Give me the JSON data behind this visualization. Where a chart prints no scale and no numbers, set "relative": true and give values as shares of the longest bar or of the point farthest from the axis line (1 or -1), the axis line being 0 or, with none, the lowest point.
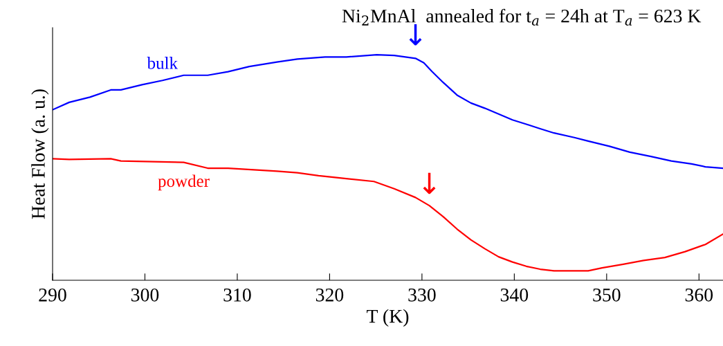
{
  "chart_data": {
    "type": "line",
    "relative": true,
    "title": "Ni$_{2}$MnAl  annealed for t$_{a}$ = 24h at T$_{a}$ = 623 K",
    "xlabel": "T (K)",
    "ylabel": "Heat Flow (a. u.)",
    "xlim": [
      290,
      362.6
    ],
    "xticks": [
      290,
      300,
      310,
      320,
      330,
      340,
      350,
      360
    ],
    "grid": false,
    "legend": false,
    "series": [
      {
        "name": "bulk",
        "color": "#0000ff",
        "x": [
          290,
          291.8,
          294.05,
          296.3,
          297.4,
          299.7,
          301.9,
          304.2,
          306.8,
          309.0,
          311.3,
          314.3,
          316.5,
          319.5,
          321.8,
          325.1,
          327.0,
          329.3,
          330.2,
          331.1,
          332.3,
          333.8,
          335.3,
          336.8,
          338.3,
          339.8,
          341.3,
          342.8,
          344.3,
          346.5,
          348.0,
          350.3,
          352.5,
          354.8,
          357.0,
          359.2,
          360.7,
          362.6
        ],
        "values": [
          0.756,
          0.789,
          0.812,
          0.844,
          0.844,
          0.867,
          0.886,
          0.909,
          0.909,
          0.925,
          0.948,
          0.968,
          0.981,
          0.99,
          0.99,
          1.0,
          0.997,
          0.984,
          0.964,
          0.925,
          0.877,
          0.821,
          0.786,
          0.763,
          0.737,
          0.711,
          0.692,
          0.672,
          0.653,
          0.633,
          0.617,
          0.594,
          0.568,
          0.549,
          0.529,
          0.516,
          0.503,
          0.497
        ]
      },
      {
        "name": "powder",
        "color": "#ff0000",
        "x": [
          290,
          291.8,
          296.3,
          297.4,
          304.2,
          306.8,
          309.0,
          314.3,
          316.5,
          318.8,
          321.8,
          324.8,
          327.0,
          329.3,
          330.8,
          332.3,
          333.8,
          335.3,
          336.8,
          338.3,
          339.8,
          341.3,
          342.8,
          344.3,
          346.5,
          348.0,
          349.5,
          351.8,
          354.0,
          356.3,
          358.5,
          360.7,
          362.6
        ],
        "values": [
          0.539,
          0.536,
          0.539,
          0.529,
          0.523,
          0.497,
          0.497,
          0.484,
          0.477,
          0.464,
          0.451,
          0.438,
          0.406,
          0.367,
          0.331,
          0.282,
          0.227,
          0.179,
          0.14,
          0.104,
          0.081,
          0.062,
          0.049,
          0.042,
          0.042,
          0.042,
          0.055,
          0.071,
          0.088,
          0.101,
          0.127,
          0.159,
          0.205
        ]
      }
    ],
    "annotations": [
      {
        "text": "↓",
        "x": 329.3,
        "y": 0.99
      },
      {
        "text": "↓",
        "x": 330.8,
        "y": 0.331
      }
    ]
  }
}
